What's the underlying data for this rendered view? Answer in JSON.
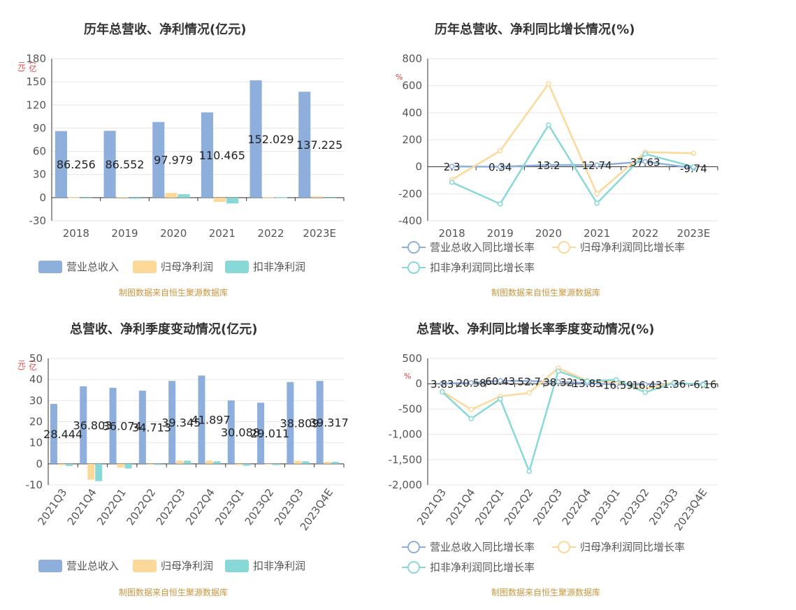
{
  "colors": {
    "revenue": "#8eaedc",
    "netprofit": "#fcd899",
    "deducted": "#88d8d8",
    "grid": "#e6e6e6",
    "axis": "#333333",
    "source": "#c8963e",
    "unit": "#e23b3b"
  },
  "charts": {
    "c1": {
      "title": "历年总营收、净利情况(亿元)",
      "unit": "(亿元)",
      "source": "制图数据来自恒生聚源数据库",
      "legend": [
        "营业总收入",
        "归母净利润",
        "扣非净利润"
      ]
    },
    "c2": {
      "title": "历年总营收、净利同比增长情况(%)",
      "unit": "%",
      "source": "制图数据来自恒生聚源数据库",
      "legend": [
        "营业总收入同比增长率",
        "归母净利润同比增长率",
        "扣非净利润同比增长率"
      ]
    },
    "c3": {
      "title": "总营收、净利季度变动情况(亿元)",
      "unit": "(亿元)",
      "source": "制图数据来自恒生聚源数据库",
      "legend": [
        "营业总收入",
        "归母净利润",
        "扣非净利润"
      ]
    },
    "c4": {
      "title": "总营收、净利同比增长率季度变动情况(%)",
      "unit": "%",
      "source": "制图数据来自恒生聚源数据库",
      "legend": [
        "营业总收入同比增长率",
        "归母净利润同比增长率",
        "扣非净利润同比增长率"
      ]
    }
  },
  "chart_data": [
    {
      "type": "bar",
      "title": "历年总营收、净利情况(亿元)",
      "ylabel": "(亿元)",
      "categories": [
        "2018",
        "2019",
        "2020",
        "2021",
        "2022",
        "2023E"
      ],
      "ylim": [
        -30,
        180
      ],
      "yticks": [
        -30,
        0,
        30,
        60,
        90,
        120,
        150,
        180
      ],
      "series": [
        {
          "name": "营业总收入",
          "values": [
            86.256,
            86.552,
            97.979,
            110.465,
            152.029,
            137.225
          ],
          "labels": [
            "86.256",
            "86.552",
            "97.979",
            "110.465",
            "152.029",
            "137.225"
          ]
        },
        {
          "name": "归母净利润",
          "values": [
            0.3,
            0.8,
            6.0,
            -5.5,
            0.5,
            1.5
          ]
        },
        {
          "name": "扣非净利润",
          "values": [
            -0.8,
            -1.5,
            4.5,
            -7.5,
            0.3,
            0
          ]
        }
      ]
    },
    {
      "type": "line",
      "title": "历年总营收、净利同比增长情况(%)",
      "ylabel": "%",
      "categories": [
        "2018",
        "2019",
        "2020",
        "2021",
        "2022",
        "2023E"
      ],
      "ylim": [
        -400,
        800
      ],
      "yticks": [
        -400,
        -200,
        0,
        200,
        400,
        600,
        800
      ],
      "series": [
        {
          "name": "营业总收入同比增长率",
          "values": [
            2.3,
            0.34,
            13.2,
            12.74,
            37.63,
            -9.74
          ],
          "labels": [
            "2.3",
            "0.34",
            "13.2",
            "12.74",
            "37.63",
            "-9.74"
          ]
        },
        {
          "name": "归母净利润同比增长率",
          "values": [
            -95,
            118,
            615,
            -200,
            108,
            100
          ]
        },
        {
          "name": "扣非净利润同比增长率",
          "values": [
            -115,
            -275,
            310,
            -270,
            95,
            0
          ]
        }
      ]
    },
    {
      "type": "bar",
      "title": "总营收、净利季度变动情况(亿元)",
      "ylabel": "(亿元)",
      "categories": [
        "2021Q3",
        "2021Q4",
        "2022Q1",
        "2022Q2",
        "2022Q3",
        "2022Q4",
        "2023Q1",
        "2023Q2",
        "2023Q3",
        "2023Q4E"
      ],
      "ylim": [
        -10,
        50
      ],
      "yticks": [
        -10,
        0,
        10,
        20,
        30,
        40,
        50
      ],
      "series": [
        {
          "name": "营业总收入",
          "values": [
            28.444,
            36.803,
            36.074,
            34.713,
            39.345,
            41.897,
            30.088,
            29.011,
            38.809,
            39.317
          ],
          "labels": [
            "28.444",
            "36.803",
            "36.074",
            "34.713",
            "39.345",
            "41.897",
            "30.088",
            "29.011",
            "38.809",
            "39.317"
          ]
        },
        {
          "name": "归母净利润",
          "values": [
            -0.6,
            -7.5,
            -1.8,
            -0.4,
            1.5,
            1.5,
            -0.6,
            -0.3,
            1.4,
            1.0
          ]
        },
        {
          "name": "扣非净利润",
          "values": [
            -1.0,
            -8.2,
            -2.2,
            -0.5,
            1.5,
            1.2,
            -0.9,
            -0.6,
            1.2,
            0.9
          ]
        }
      ]
    },
    {
      "type": "line",
      "title": "总营收、净利同比增长率季度变动情况(%)",
      "ylabel": "%",
      "categories": [
        "2021Q3",
        "2021Q4",
        "2022Q1",
        "2022Q2",
        "2022Q3",
        "2022Q4",
        "2023Q1",
        "2023Q2",
        "2023Q3",
        "2023Q4E"
      ],
      "ylim": [
        -2000,
        500
      ],
      "yticks": [
        -2000,
        -1500,
        -1000,
        -500,
        0,
        500
      ],
      "ytick_labels": [
        "-2,000",
        "-1,500",
        "-1,000",
        "-500",
        "0",
        "500"
      ],
      "series": [
        {
          "name": "营业总收入同比增长率",
          "values": [
            3.83,
            20.58,
            60.43,
            52.7,
            38.32,
            13.85,
            -16.59,
            -16.43,
            1.36,
            -6.16
          ],
          "labels": [
            "3.83",
            "20.58",
            "60.43",
            "52.7",
            "38.32",
            "13.85",
            "-16.59",
            "-16.43",
            "1.36",
            "-6.16"
          ]
        },
        {
          "name": "归母净利润同比增长率",
          "values": [
            -150,
            -510,
            -250,
            -180,
            310,
            60,
            30,
            -100,
            30,
            -30
          ]
        },
        {
          "name": "扣非净利润同比增长率",
          "values": [
            -160,
            -690,
            -300,
            -1730,
            250,
            50,
            80,
            -170,
            20,
            -20
          ]
        }
      ]
    }
  ]
}
